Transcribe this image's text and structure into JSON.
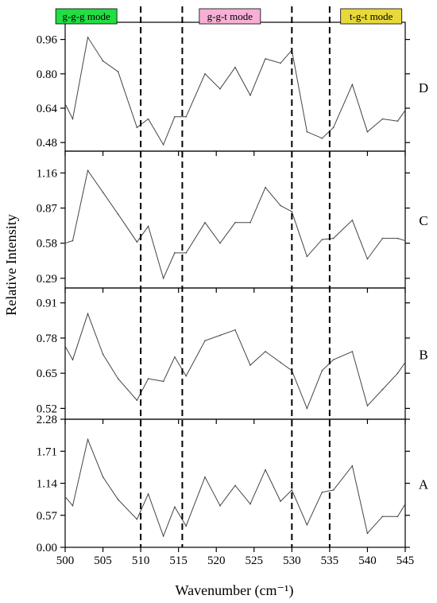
{
  "chart_data": {
    "type": "line",
    "xlabel": "Wavenumber (cm⁻¹)",
    "ylabel": "Relative Intensity",
    "xlim": [
      500,
      545
    ],
    "x_ticks": [
      "500",
      "505",
      "510",
      "515",
      "520",
      "525",
      "530",
      "535",
      "540",
      "545"
    ],
    "x": [
      500,
      501,
      503,
      505,
      507,
      509.5,
      511,
      513,
      514.5,
      516,
      518.5,
      520.5,
      522.5,
      524.5,
      526.5,
      528.5,
      530,
      532,
      534,
      535.5,
      538,
      540,
      542,
      544,
      545
    ],
    "vlines": [
      510,
      515.5,
      530,
      535
    ],
    "modes": [
      {
        "label": "g-g-g mode",
        "color": "#22dd44",
        "x": 502.8
      },
      {
        "label": "g-g-t mode",
        "color": "#f7b0d5",
        "x": 521.8
      },
      {
        "label": "t-g-t mode",
        "color": "#e8d83a",
        "x": 540.5
      }
    ],
    "panels": [
      {
        "name": "D",
        "ylim": [
          0.44,
          1.04
        ],
        "ticks": [
          "0.48",
          "0.64",
          "0.80",
          "0.96"
        ],
        "values": [
          0.66,
          0.59,
          0.97,
          0.86,
          0.81,
          0.55,
          0.59,
          0.47,
          0.6,
          0.6,
          0.8,
          0.73,
          0.83,
          0.7,
          0.87,
          0.85,
          0.91,
          0.53,
          0.5,
          0.55,
          0.75,
          0.53,
          0.59,
          0.58,
          0.63
        ]
      },
      {
        "name": "C",
        "ylim": [
          0.21,
          1.34
        ],
        "ticks": [
          "0.29",
          "0.58",
          "0.87",
          "1.16"
        ],
        "values": [
          0.58,
          0.6,
          1.18,
          1.0,
          0.82,
          0.59,
          0.72,
          0.29,
          0.5,
          0.5,
          0.75,
          0.58,
          0.75,
          0.75,
          1.04,
          0.89,
          0.84,
          0.47,
          0.61,
          0.62,
          0.77,
          0.45,
          0.62,
          0.62,
          0.6
        ]
      },
      {
        "name": "B",
        "ylim": [
          0.48,
          0.965
        ],
        "ticks": [
          "0.52",
          "0.65",
          "0.78",
          "0.91"
        ],
        "values": [
          0.75,
          0.7,
          0.87,
          0.72,
          0.63,
          0.55,
          0.63,
          0.62,
          0.71,
          0.64,
          0.77,
          0.79,
          0.81,
          0.68,
          0.73,
          0.69,
          0.66,
          0.52,
          0.66,
          0.7,
          0.73,
          0.53,
          0.59,
          0.65,
          0.69
        ]
      },
      {
        "name": "A",
        "ylim": [
          0.0,
          2.28
        ],
        "ticks": [
          "0.00",
          "0.57",
          "1.14",
          "1.71",
          "2.28"
        ],
        "values": [
          0.9,
          0.74,
          1.92,
          1.25,
          0.85,
          0.5,
          0.95,
          0.2,
          0.72,
          0.38,
          1.25,
          0.74,
          1.1,
          0.77,
          1.38,
          0.82,
          1.02,
          0.4,
          0.98,
          1.02,
          1.45,
          0.25,
          0.55,
          0.55,
          0.77
        ]
      }
    ]
  }
}
